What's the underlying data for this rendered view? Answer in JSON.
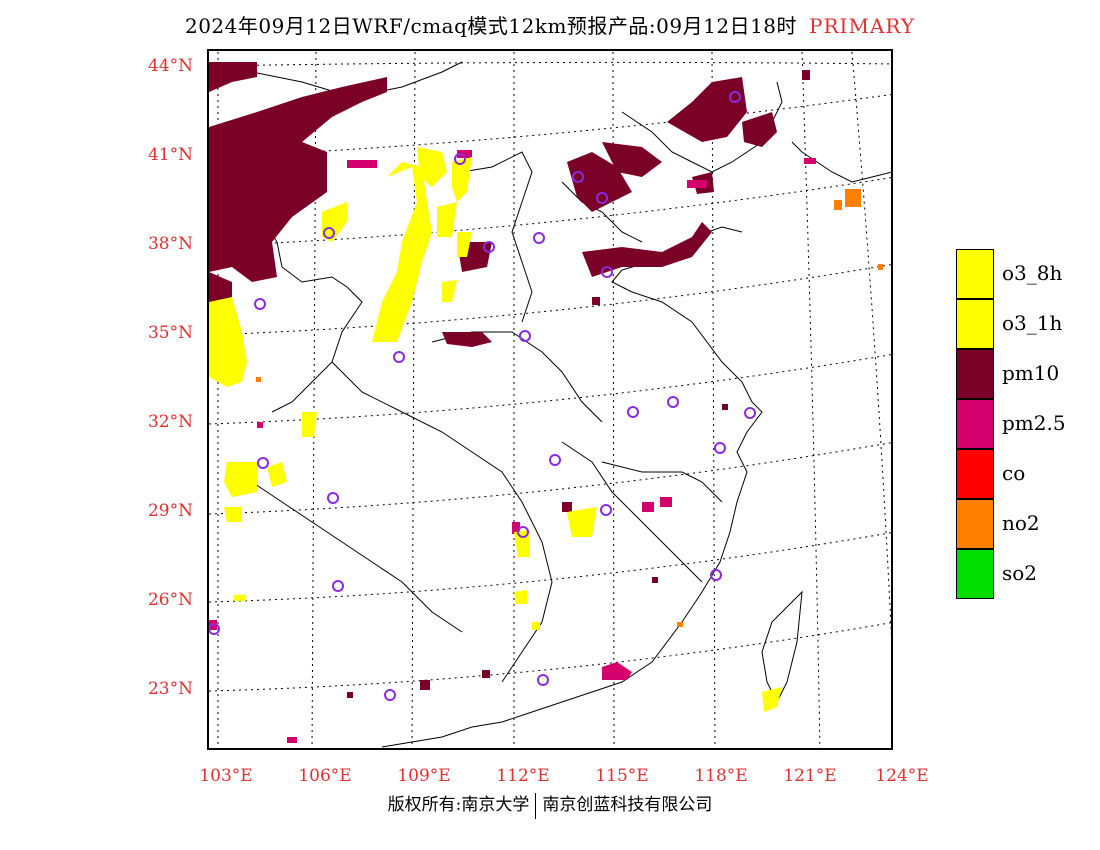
{
  "title": {
    "main": "2024年09月12日WRF/cmaq模式12km预报产品:09月12日18时",
    "tag": "PRIMARY"
  },
  "axes": {
    "latitudes": [
      "44°N",
      "41°N",
      "38°N",
      "35°N",
      "32°N",
      "29°N",
      "26°N",
      "23°N"
    ],
    "longitudes": [
      "103°E",
      "106°E",
      "109°E",
      "112°E",
      "115°E",
      "118°E",
      "121°E",
      "124°E"
    ]
  },
  "legend": [
    {
      "label": "o3_8h",
      "color": "#ffff00"
    },
    {
      "label": "o3_1h",
      "color": "#ffff00"
    },
    {
      "label": "pm10",
      "color": "#7b0028"
    },
    {
      "label": "pm2.5",
      "color": "#d4006e"
    },
    {
      "label": "co",
      "color": "#ff0000"
    },
    {
      "label": "no2",
      "color": "#ff7f00"
    },
    {
      "label": "so2",
      "color": "#00dd00"
    }
  ],
  "footer": {
    "left": "版权所有:南京大学",
    "right": "南京创蓝科技有限公司"
  }
}
